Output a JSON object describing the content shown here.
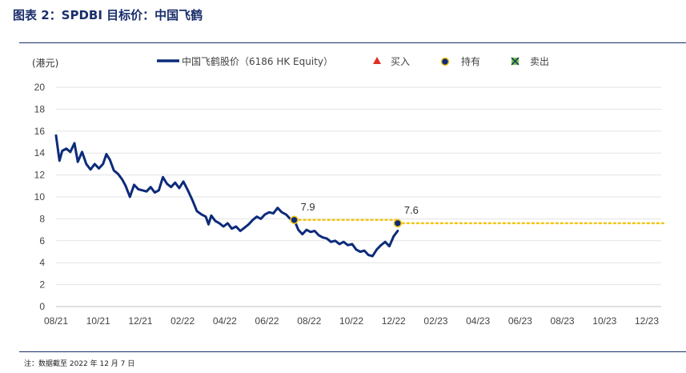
{
  "header": {
    "title": "图表 2：SPDBI 目标价：中国飞鹤"
  },
  "footer": {
    "note": "注：数据截至 2022 年 12 月 7 日"
  },
  "colors": {
    "price_line": "#0d2b7a",
    "target_line": "#f2c618",
    "title": "#1a2e6b",
    "buy": "#e03020",
    "sell_fill": "#78c23a"
  },
  "chart_data": {
    "type": "line",
    "unit_label": "(港元)",
    "ylim": [
      0,
      20
    ],
    "yticks": [
      0,
      2,
      4,
      6,
      8,
      10,
      12,
      14,
      16,
      18,
      20
    ],
    "x_tick_labels": [
      "08/21",
      "10/21",
      "12/21",
      "02/22",
      "04/22",
      "06/22",
      "08/22",
      "10/22",
      "12/22",
      "02/23",
      "04/23",
      "06/23",
      "08/23",
      "10/23",
      "12/23"
    ],
    "grid": "horizontal",
    "legend": {
      "placement": "top",
      "items": [
        {
          "label": "中国飞鹤股价（6186 HK Equity）",
          "marker": "line"
        },
        {
          "label": "买入",
          "marker": "triangle"
        },
        {
          "label": "持有",
          "marker": "circle"
        },
        {
          "label": "卖出",
          "marker": "square-x"
        }
      ]
    },
    "price_series": {
      "name": "中国飞鹤股价（6186 HK Equity）",
      "points": [
        [
          "2021-08-01",
          15.6
        ],
        [
          "2021-08-06",
          13.3
        ],
        [
          "2021-08-10",
          14.2
        ],
        [
          "2021-08-16",
          14.4
        ],
        [
          "2021-08-22",
          14.1
        ],
        [
          "2021-08-28",
          14.9
        ],
        [
          "2021-09-02",
          13.2
        ],
        [
          "2021-09-08",
          14.1
        ],
        [
          "2021-09-14",
          13.0
        ],
        [
          "2021-09-20",
          12.5
        ],
        [
          "2021-09-26",
          13.0
        ],
        [
          "2021-10-02",
          12.6
        ],
        [
          "2021-10-08",
          13.0
        ],
        [
          "2021-10-13",
          13.9
        ],
        [
          "2021-10-18",
          13.4
        ],
        [
          "2021-10-24",
          12.4
        ],
        [
          "2021-10-30",
          12.1
        ],
        [
          "2021-11-05",
          11.6
        ],
        [
          "2021-11-10",
          11.0
        ],
        [
          "2021-11-16",
          10.0
        ],
        [
          "2021-11-22",
          11.1
        ],
        [
          "2021-11-28",
          10.7
        ],
        [
          "2021-12-04",
          10.6
        ],
        [
          "2021-12-10",
          10.5
        ],
        [
          "2021-12-16",
          10.9
        ],
        [
          "2021-12-22",
          10.4
        ],
        [
          "2021-12-28",
          10.6
        ],
        [
          "2022-01-03",
          11.8
        ],
        [
          "2022-01-09",
          11.2
        ],
        [
          "2022-01-15",
          10.9
        ],
        [
          "2022-01-21",
          11.3
        ],
        [
          "2022-01-27",
          10.8
        ],
        [
          "2022-02-02",
          11.4
        ],
        [
          "2022-02-08",
          10.6
        ],
        [
          "2022-02-14",
          9.7
        ],
        [
          "2022-02-20",
          8.7
        ],
        [
          "2022-02-26",
          8.4
        ],
        [
          "2022-03-04",
          8.2
        ],
        [
          "2022-03-08",
          7.5
        ],
        [
          "2022-03-12",
          8.3
        ],
        [
          "2022-03-18",
          7.8
        ],
        [
          "2022-03-24",
          7.6
        ],
        [
          "2022-03-30",
          7.3
        ],
        [
          "2022-04-05",
          7.6
        ],
        [
          "2022-04-11",
          7.1
        ],
        [
          "2022-04-17",
          7.3
        ],
        [
          "2022-04-23",
          6.9
        ],
        [
          "2022-04-29",
          7.2
        ],
        [
          "2022-05-05",
          7.5
        ],
        [
          "2022-05-11",
          7.9
        ],
        [
          "2022-05-17",
          8.2
        ],
        [
          "2022-05-23",
          8.0
        ],
        [
          "2022-05-29",
          8.4
        ],
        [
          "2022-06-04",
          8.6
        ],
        [
          "2022-06-10",
          8.5
        ],
        [
          "2022-06-16",
          9.0
        ],
        [
          "2022-06-22",
          8.6
        ],
        [
          "2022-06-28",
          8.4
        ],
        [
          "2022-07-04",
          8.0
        ],
        [
          "2022-07-10",
          7.9
        ],
        [
          "2022-07-16",
          7.0
        ],
        [
          "2022-07-22",
          6.6
        ],
        [
          "2022-07-28",
          7.0
        ],
        [
          "2022-08-03",
          6.8
        ],
        [
          "2022-08-09",
          6.9
        ],
        [
          "2022-08-15",
          6.5
        ],
        [
          "2022-08-21",
          6.3
        ],
        [
          "2022-08-27",
          6.2
        ],
        [
          "2022-09-02",
          5.9
        ],
        [
          "2022-09-08",
          6.0
        ],
        [
          "2022-09-14",
          5.7
        ],
        [
          "2022-09-20",
          5.9
        ],
        [
          "2022-09-26",
          5.6
        ],
        [
          "2022-10-02",
          5.7
        ],
        [
          "2022-10-08",
          5.2
        ],
        [
          "2022-10-14",
          5.0
        ],
        [
          "2022-10-20",
          5.1
        ],
        [
          "2022-10-26",
          4.7
        ],
        [
          "2022-11-01",
          4.6
        ],
        [
          "2022-11-07",
          5.2
        ],
        [
          "2022-11-13",
          5.6
        ],
        [
          "2022-11-19",
          5.9
        ],
        [
          "2022-11-25",
          5.5
        ],
        [
          "2022-12-01",
          6.4
        ],
        [
          "2022-12-07",
          6.9
        ]
      ]
    },
    "ratings": [
      {
        "date": "2022-07-10",
        "value": 7.9,
        "rating": "持有",
        "label": "7.9",
        "target_until": "2022-12-07"
      },
      {
        "date": "2022-12-07",
        "value": 7.6,
        "rating": "持有",
        "label": "7.6",
        "target_until": "2023-12-31"
      }
    ]
  }
}
